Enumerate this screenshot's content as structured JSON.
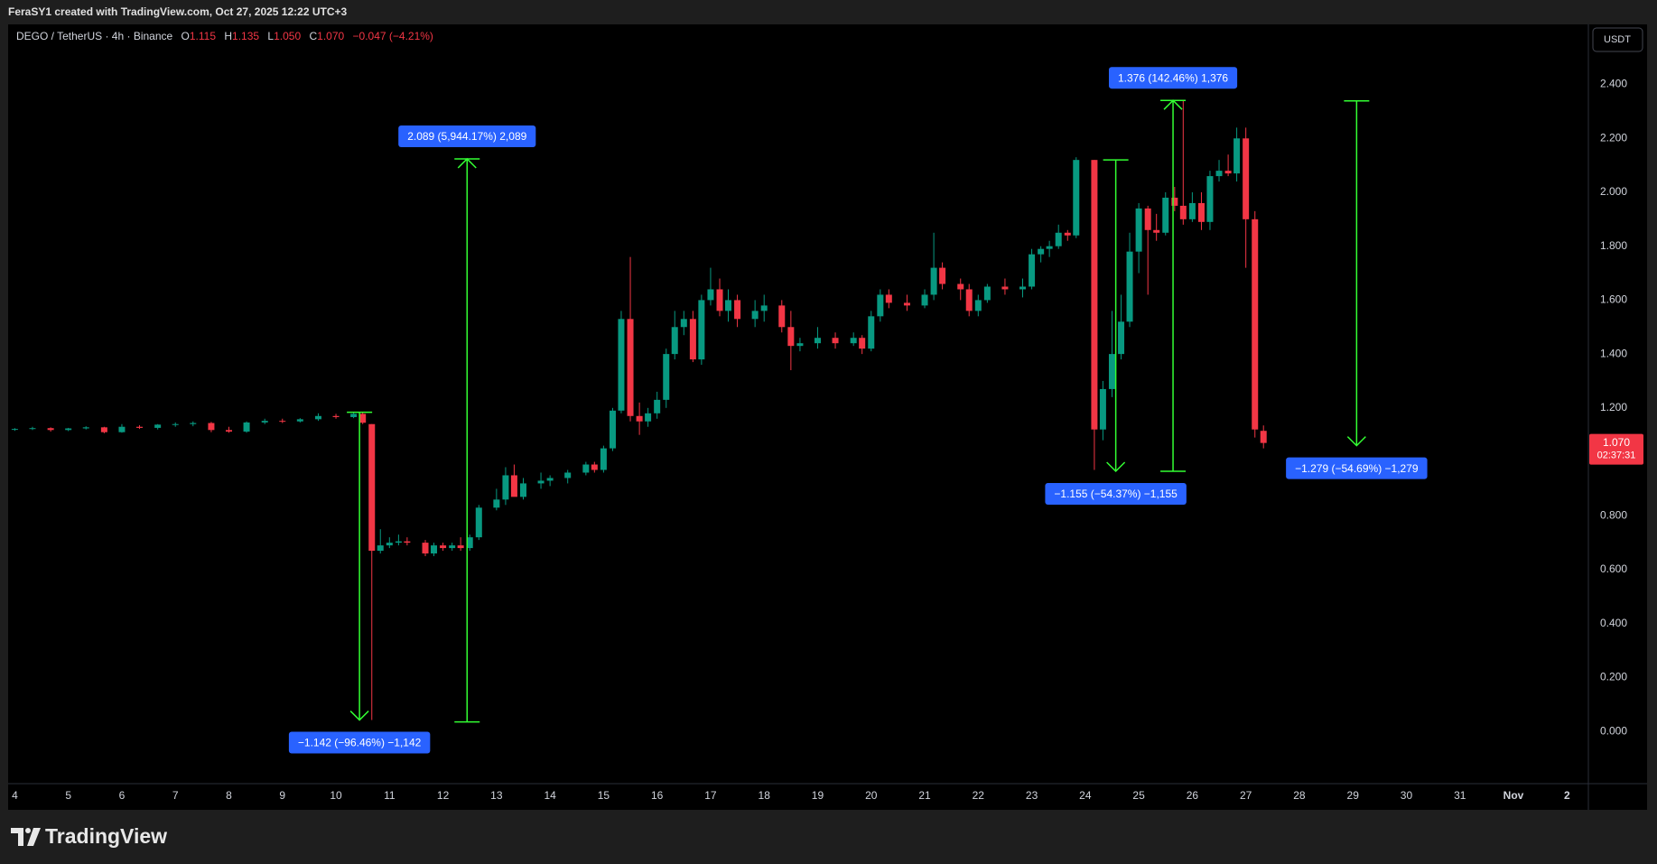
{
  "header": "FeraSY1 created with TradingView.com, Oct 27, 2025 12:22 UTC+3",
  "footer_logo": "TradingView",
  "currency_button": "USDT",
  "chart_data": {
    "type": "candlestick",
    "title": "DEGO / TetherUS · 4h · Binance",
    "ohlc_legend": [
      {
        "key": "O",
        "value": "1.115"
      },
      {
        "key": "H",
        "value": "1.135"
      },
      {
        "key": "L",
        "value": "1.050"
      },
      {
        "key": "C",
        "value": "1.070"
      }
    ],
    "change": "−0.047 (−4.21%)",
    "up_color": "#089981",
    "down_color": "#f23645",
    "x": [
      4.0,
      4.33,
      4.67,
      5.0,
      5.33,
      5.67,
      6.0,
      6.33,
      6.67,
      7.0,
      7.33,
      7.67,
      8.0,
      8.33,
      8.67,
      9.0,
      9.33,
      9.67,
      10.0,
      10.33,
      10.5,
      10.67,
      10.83,
      11.0,
      11.17,
      11.33,
      11.67,
      11.83,
      12.0,
      12.17,
      12.33,
      12.5,
      12.67,
      13.0,
      13.17,
      13.33,
      13.5,
      13.83,
      14.0,
      14.33,
      14.67,
      14.83,
      15.0,
      15.17,
      15.33,
      15.5,
      15.67,
      15.83,
      16.0,
      16.17,
      16.33,
      16.5,
      16.67,
      16.83,
      17.0,
      17.17,
      17.33,
      17.5,
      17.83,
      18.0,
      18.33,
      18.5,
      18.67,
      19.0,
      19.33,
      19.67,
      19.83,
      20.0,
      20.17,
      20.33,
      20.67,
      21.0,
      21.17,
      21.33,
      21.67,
      21.83,
      22.0,
      22.17,
      22.5,
      22.83,
      23.0,
      23.17,
      23.33,
      23.5,
      23.67,
      23.83,
      24.17,
      24.33,
      24.5,
      24.67,
      24.83,
      25.0,
      25.17,
      25.33,
      25.5,
      25.67,
      25.83,
      26.0,
      26.17,
      26.33,
      26.5,
      26.67,
      26.83,
      27.0,
      27.17,
      27.33
    ],
    "open": [
      1.12,
      1.122,
      1.125,
      1.118,
      1.124,
      1.128,
      1.11,
      1.13,
      1.126,
      1.138,
      1.14,
      1.144,
      1.118,
      1.112,
      1.146,
      1.152,
      1.15,
      1.158,
      1.17,
      1.166,
      1.178,
      1.14,
      0.67,
      0.69,
      0.7,
      0.705,
      0.7,
      0.66,
      0.69,
      0.68,
      0.69,
      0.68,
      0.72,
      0.83,
      0.86,
      0.95,
      0.87,
      0.92,
      0.93,
      0.94,
      0.96,
      0.99,
      0.97,
      1.05,
      1.19,
      1.53,
      1.17,
      1.15,
      1.18,
      1.23,
      1.4,
      1.5,
      1.53,
      1.38,
      1.6,
      1.64,
      1.56,
      1.6,
      1.53,
      1.56,
      1.58,
      1.5,
      1.43,
      1.44,
      1.46,
      1.44,
      1.46,
      1.42,
      1.54,
      1.62,
      1.59,
      1.58,
      1.62,
      1.72,
      1.66,
      1.64,
      1.56,
      1.6,
      1.65,
      1.64,
      1.65,
      1.77,
      1.79,
      1.8,
      1.85,
      1.84,
      2.12,
      1.12,
      1.27,
      1.4,
      1.52,
      1.78,
      1.94,
      1.86,
      1.85,
      1.98,
      1.95,
      1.9,
      1.96,
      1.89,
      2.06,
      2.08,
      2.07,
      2.2,
      1.9,
      1.115
    ],
    "high": [
      1.125,
      1.13,
      1.128,
      1.126,
      1.132,
      1.13,
      1.14,
      1.136,
      1.14,
      1.146,
      1.15,
      1.148,
      1.13,
      1.15,
      1.16,
      1.16,
      1.162,
      1.18,
      1.178,
      1.184,
      1.184,
      1.14,
      0.75,
      0.72,
      0.73,
      0.72,
      0.71,
      0.7,
      0.7,
      0.7,
      0.72,
      0.73,
      0.84,
      0.9,
      0.98,
      0.99,
      0.94,
      0.96,
      0.95,
      0.97,
      1,
      1,
      1.06,
      1.2,
      1.56,
      1.76,
      1.22,
      1.2,
      1.26,
      1.42,
      1.56,
      1.56,
      1.56,
      1.62,
      1.72,
      1.68,
      1.64,
      1.62,
      1.6,
      1.62,
      1.6,
      1.56,
      1.46,
      1.5,
      1.48,
      1.48,
      1.47,
      1.56,
      1.64,
      1.64,
      1.62,
      1.64,
      1.85,
      1.74,
      1.68,
      1.66,
      1.62,
      1.66,
      1.68,
      1.68,
      1.79,
      1.8,
      1.82,
      1.88,
      1.86,
      2.13,
      2.12,
      1.3,
      1.56,
      1.62,
      1.85,
      1.96,
      1.95,
      1.92,
      2,
      2.02,
      2.34,
      2,
      2,
      2.08,
      2.12,
      2.14,
      2.24,
      2.24,
      1.93,
      1.135
    ],
    "low": [
      1.115,
      1.118,
      1.112,
      1.114,
      1.12,
      1.106,
      1.108,
      1.122,
      1.12,
      1.13,
      1.132,
      1.11,
      1.108,
      1.108,
      1.14,
      1.144,
      1.146,
      1.152,
      1.16,
      1.162,
      1.14,
      0.042,
      0.66,
      0.68,
      0.69,
      0.69,
      0.65,
      0.65,
      0.67,
      0.67,
      0.67,
      0.67,
      0.71,
      0.82,
      0.84,
      0.88,
      0.86,
      0.9,
      0.91,
      0.92,
      0.95,
      0.96,
      0.96,
      1.04,
      1.18,
      1.15,
      1.1,
      1.13,
      1.16,
      1.2,
      1.38,
      1.47,
      1.37,
      1.36,
      1.58,
      1.54,
      1.52,
      1.5,
      1.5,
      1.52,
      1.48,
      1.34,
      1.41,
      1.42,
      1.42,
      1.43,
      1.4,
      1.41,
      1.52,
      1.57,
      1.56,
      1.57,
      1.6,
      1.64,
      1.6,
      1.54,
      1.54,
      1.59,
      1.62,
      1.61,
      1.64,
      1.74,
      1.76,
      1.79,
      1.82,
      1.83,
      0.97,
      1.08,
      1.24,
      1.38,
      1.5,
      1.7,
      1.62,
      1.82,
      1.84,
      1.93,
      1.88,
      1.89,
      1.86,
      1.86,
      2.04,
      2.06,
      2.04,
      1.72,
      1.09,
      1.05
    ],
    "close": [
      1.122,
      1.125,
      1.118,
      1.124,
      1.128,
      1.11,
      1.13,
      1.126,
      1.138,
      1.14,
      1.144,
      1.118,
      1.112,
      1.146,
      1.152,
      1.15,
      1.158,
      1.17,
      1.166,
      1.178,
      1.145,
      0.67,
      0.69,
      0.7,
      0.705,
      0.7,
      0.66,
      0.69,
      0.68,
      0.69,
      0.68,
      0.72,
      0.83,
      0.86,
      0.95,
      0.87,
      0.92,
      0.93,
      0.94,
      0.96,
      0.99,
      0.97,
      1.05,
      1.19,
      1.53,
      1.17,
      1.15,
      1.18,
      1.23,
      1.4,
      1.5,
      1.53,
      1.38,
      1.6,
      1.64,
      1.56,
      1.6,
      1.53,
      1.56,
      1.58,
      1.5,
      1.43,
      1.44,
      1.46,
      1.44,
      1.46,
      1.42,
      1.54,
      1.62,
      1.59,
      1.58,
      1.62,
      1.72,
      1.66,
      1.64,
      1.56,
      1.6,
      1.65,
      1.64,
      1.65,
      1.77,
      1.79,
      1.8,
      1.85,
      1.84,
      2.12,
      1.12,
      1.27,
      1.4,
      1.52,
      1.78,
      1.94,
      1.86,
      1.85,
      1.98,
      1.95,
      1.9,
      1.96,
      1.89,
      2.06,
      2.08,
      2.07,
      2.2,
      1.9,
      1.12,
      1.07
    ],
    "xlim": [
      3.875,
      33.4
    ],
    "ylim": [
      -0.194,
      2.623
    ],
    "xticks": [
      4,
      5,
      6,
      7,
      8,
      9,
      10,
      11,
      12,
      13,
      14,
      15,
      16,
      17,
      18,
      19,
      20,
      21,
      22,
      23,
      24,
      25,
      26,
      27,
      28,
      29,
      30,
      31,
      {
        "value": 32,
        "label": "Nov"
      },
      {
        "value": 33,
        "label": "2"
      }
    ],
    "yticks": [
      {
        "value": 0,
        "label": "0.000"
      },
      {
        "value": 0.2,
        "label": "0.200"
      },
      {
        "value": 0.4,
        "label": "0.400"
      },
      {
        "value": 0.6,
        "label": "0.600"
      },
      {
        "value": 0.8,
        "label": "0.800"
      },
      {
        "value": 1,
        "label": "1.000"
      },
      {
        "value": 1.2,
        "label": "1.200"
      },
      {
        "value": 1.4,
        "label": "1.400"
      },
      {
        "value": 1.6,
        "label": "1.600"
      },
      {
        "value": 1.8,
        "label": "1.800"
      },
      {
        "value": 2,
        "label": "2.000"
      },
      {
        "value": 2.2,
        "label": "2.200"
      },
      {
        "value": 2.4,
        "label": "2.400"
      }
    ],
    "grid": false,
    "last_price": {
      "value": 1.07,
      "label": "1.070"
    },
    "countdown": "02:37:31",
    "measure_color": "#33ff33",
    "label_color": "#2962ff",
    "annotations": [
      {
        "text": "−1.142 (−96.46%) −1,142",
        "x": 10.44,
        "from": 1.184,
        "to": 0.042
      },
      {
        "text": "2.089 (5,944.17%) 2,089",
        "x": 12.45,
        "from": 0.035,
        "to": 2.124
      },
      {
        "text": "−1.155 (−54.37%) −1,155",
        "x": 24.57,
        "from": 2.12,
        "to": 0.965
      },
      {
        "text": "1.376 (142.46%) 1,376",
        "x": 25.64,
        "from": 0.965,
        "to": 2.341
      },
      {
        "text": "−1.279 (−54.69%) −1,279",
        "x": 29.07,
        "from": 2.339,
        "to": 1.06
      }
    ]
  }
}
